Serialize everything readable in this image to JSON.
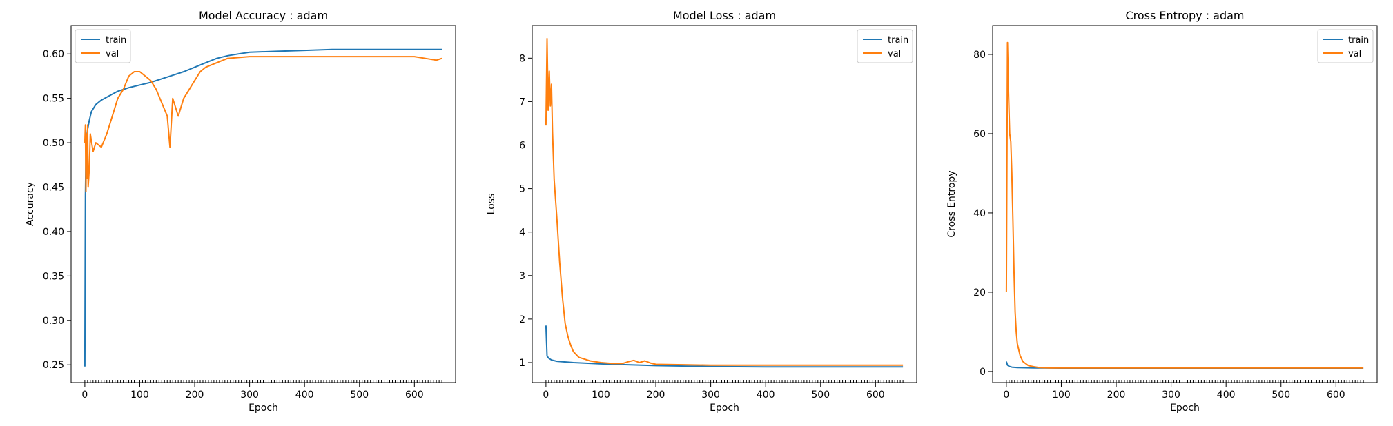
{
  "chart_data": [
    {
      "type": "line",
      "title": "Model Accuracy : adam",
      "xlabel": "Epoch",
      "ylabel": "Accuracy",
      "xlim": [
        -25,
        675
      ],
      "ylim": [
        0.23,
        0.632
      ],
      "xticks": [
        0,
        100,
        200,
        300,
        400,
        500,
        600
      ],
      "yticks": [
        0.25,
        0.3,
        0.35,
        0.4,
        0.45,
        0.5,
        0.55,
        0.6
      ],
      "ytick_format": 2,
      "minor_xticks": true,
      "legend": "top-left",
      "grid": false,
      "series": [
        {
          "name": "train",
          "color": "#1f77b4",
          "x": [
            0,
            1,
            2,
            3,
            5,
            8,
            12,
            20,
            30,
            45,
            60,
            80,
            100,
            120,
            140,
            160,
            180,
            200,
            220,
            240,
            260,
            280,
            300,
            350,
            400,
            450,
            500,
            550,
            600,
            650
          ],
          "y": [
            0.248,
            0.44,
            0.49,
            0.505,
            0.515,
            0.525,
            0.535,
            0.543,
            0.548,
            0.553,
            0.558,
            0.562,
            0.565,
            0.568,
            0.572,
            0.576,
            0.58,
            0.585,
            0.59,
            0.595,
            0.598,
            0.6,
            0.602,
            0.603,
            0.604,
            0.605,
            0.605,
            0.605,
            0.605,
            0.605
          ]
        },
        {
          "name": "val",
          "color": "#ff7f0e",
          "x": [
            0,
            1,
            2,
            3,
            4,
            5,
            6,
            8,
            10,
            15,
            20,
            30,
            40,
            50,
            60,
            70,
            80,
            90,
            100,
            110,
            120,
            130,
            140,
            150,
            155,
            160,
            165,
            170,
            180,
            190,
            200,
            210,
            220,
            240,
            260,
            280,
            300,
            350,
            400,
            450,
            500,
            550,
            600,
            620,
            640,
            650
          ],
          "y": [
            0.5,
            0.52,
            0.445,
            0.51,
            0.46,
            0.52,
            0.45,
            0.47,
            0.51,
            0.49,
            0.5,
            0.495,
            0.51,
            0.53,
            0.55,
            0.56,
            0.575,
            0.58,
            0.58,
            0.575,
            0.57,
            0.56,
            0.545,
            0.53,
            0.495,
            0.55,
            0.54,
            0.53,
            0.55,
            0.56,
            0.57,
            0.58,
            0.585,
            0.59,
            0.595,
            0.596,
            0.597,
            0.597,
            0.597,
            0.597,
            0.597,
            0.597,
            0.597,
            0.595,
            0.593,
            0.595
          ]
        }
      ]
    },
    {
      "type": "line",
      "title": "Model Loss : adam",
      "xlabel": "Epoch",
      "ylabel": "Loss",
      "xlim": [
        -25,
        675
      ],
      "ylim": [
        0.54,
        8.75
      ],
      "xticks": [
        0,
        100,
        200,
        300,
        400,
        500,
        600
      ],
      "yticks": [
        1,
        2,
        3,
        4,
        5,
        6,
        7,
        8
      ],
      "ytick_format": 0,
      "minor_xticks": true,
      "legend": "top-right",
      "grid": false,
      "series": [
        {
          "name": "train",
          "color": "#1f77b4",
          "x": [
            0,
            2,
            5,
            10,
            20,
            50,
            100,
            200,
            300,
            400,
            500,
            600,
            650
          ],
          "y": [
            1.85,
            1.15,
            1.1,
            1.06,
            1.03,
            1.0,
            0.97,
            0.93,
            0.91,
            0.9,
            0.9,
            0.9,
            0.9
          ]
        },
        {
          "name": "val",
          "color": "#ff7f0e",
          "x": [
            0,
            2,
            4,
            6,
            8,
            10,
            12,
            15,
            20,
            25,
            30,
            35,
            40,
            45,
            50,
            60,
            70,
            80,
            100,
            120,
            140,
            150,
            160,
            170,
            180,
            190,
            200,
            250,
            300,
            400,
            500,
            600,
            650
          ],
          "y": [
            6.45,
            8.45,
            6.8,
            7.7,
            6.9,
            7.4,
            6.3,
            5.2,
            4.3,
            3.3,
            2.5,
            1.9,
            1.6,
            1.4,
            1.25,
            1.12,
            1.08,
            1.04,
            1.0,
            0.98,
            0.98,
            1.02,
            1.05,
            1.0,
            1.04,
            0.99,
            0.96,
            0.95,
            0.94,
            0.94,
            0.94,
            0.94,
            0.94
          ]
        }
      ]
    },
    {
      "type": "line",
      "title": "Cross Entropy : adam",
      "xlabel": "Epoch",
      "ylabel": "Cross Entropy",
      "xlim": [
        -25,
        675
      ],
      "ylim": [
        -2.8,
        87.3
      ],
      "xticks": [
        0,
        100,
        200,
        300,
        400,
        500,
        600
      ],
      "yticks": [
        0,
        20,
        40,
        60,
        80
      ],
      "ytick_format": 0,
      "minor_xticks": true,
      "legend": "top-right",
      "grid": false,
      "series": [
        {
          "name": "train",
          "color": "#1f77b4",
          "x": [
            0,
            2,
            5,
            10,
            20,
            50,
            100,
            200,
            300,
            400,
            500,
            600,
            650
          ],
          "y": [
            2.5,
            1.6,
            1.3,
            1.1,
            1.0,
            0.9,
            0.85,
            0.8,
            0.8,
            0.8,
            0.8,
            0.8,
            0.8
          ]
        },
        {
          "name": "val",
          "color": "#ff7f0e",
          "x": [
            0,
            2,
            4,
            6,
            8,
            10,
            12,
            14,
            16,
            18,
            20,
            25,
            30,
            40,
            50,
            60,
            80,
            100,
            200,
            300,
            400,
            500,
            600,
            650
          ],
          "y": [
            20,
            83,
            70,
            60,
            58,
            50,
            38,
            25,
            15,
            10,
            7,
            4,
            2.5,
            1.5,
            1.2,
            1.0,
            0.9,
            0.9,
            0.9,
            0.9,
            0.9,
            0.9,
            0.9,
            0.9
          ]
        }
      ]
    }
  ]
}
